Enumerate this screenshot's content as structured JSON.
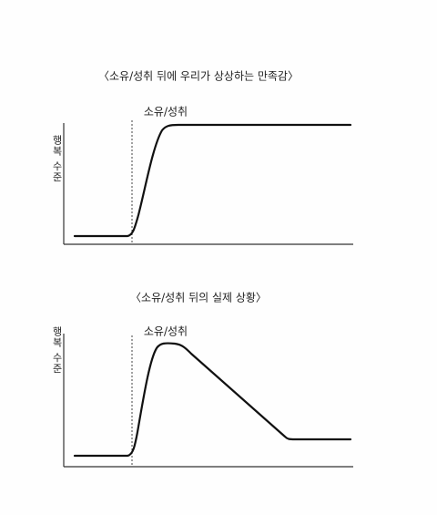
{
  "charts": [
    {
      "title": "〈소유/성취 뒤에 우리가 상상하는 만족감〉",
      "y_label": "행복 수준",
      "event_label": "소유/성취"
    },
    {
      "title": "〈소유/성취 뒤의 실제 상황〉",
      "y_label": "행복 수준",
      "event_label": "소유/성취"
    }
  ]
}
